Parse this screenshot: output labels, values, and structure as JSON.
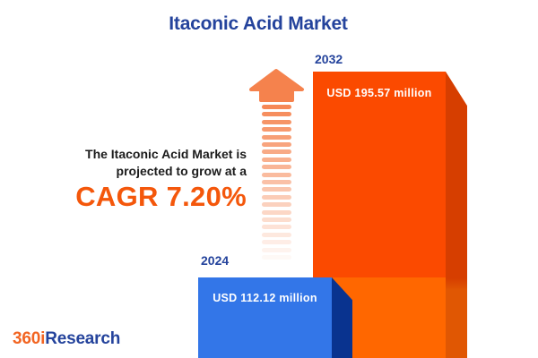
{
  "chart_data": {
    "type": "bar",
    "title": "Itaconic Acid Market",
    "categories": [
      "2024",
      "2032"
    ],
    "values": [
      112.12,
      195.57
    ],
    "unit": "USD million",
    "data_labels": [
      "USD 112.12 million",
      "USD 195.57 million"
    ],
    "bar_colors": [
      "#3376E8",
      "#FB4A00"
    ],
    "annotations": [
      "The Itaconic Acid Market is projected to grow at a CAGR 7.20%"
    ],
    "cagr_percent": 7.2,
    "legend": false,
    "grid": false,
    "axes_visible": false
  },
  "annotation": {
    "line1": "The Itaconic Acid Market is",
    "line2": "projected to grow at a",
    "cagr_label": "CAGR 7.20%"
  },
  "logo": {
    "prefix": "360i",
    "suffix": "Research"
  },
  "colors": {
    "title_blue": "#24439C",
    "accent_orange": "#F4570B",
    "orange_face": "#FB4A00",
    "orange_face_lower": "#FF6700",
    "orange_bevel": "#D63E00",
    "orange_bevel_lower": "#E05703",
    "blue_face": "#3376E8",
    "blue_bevel": "#09338F",
    "arrow_salmon": "#F5824D",
    "logo_orange": "#F26522"
  }
}
